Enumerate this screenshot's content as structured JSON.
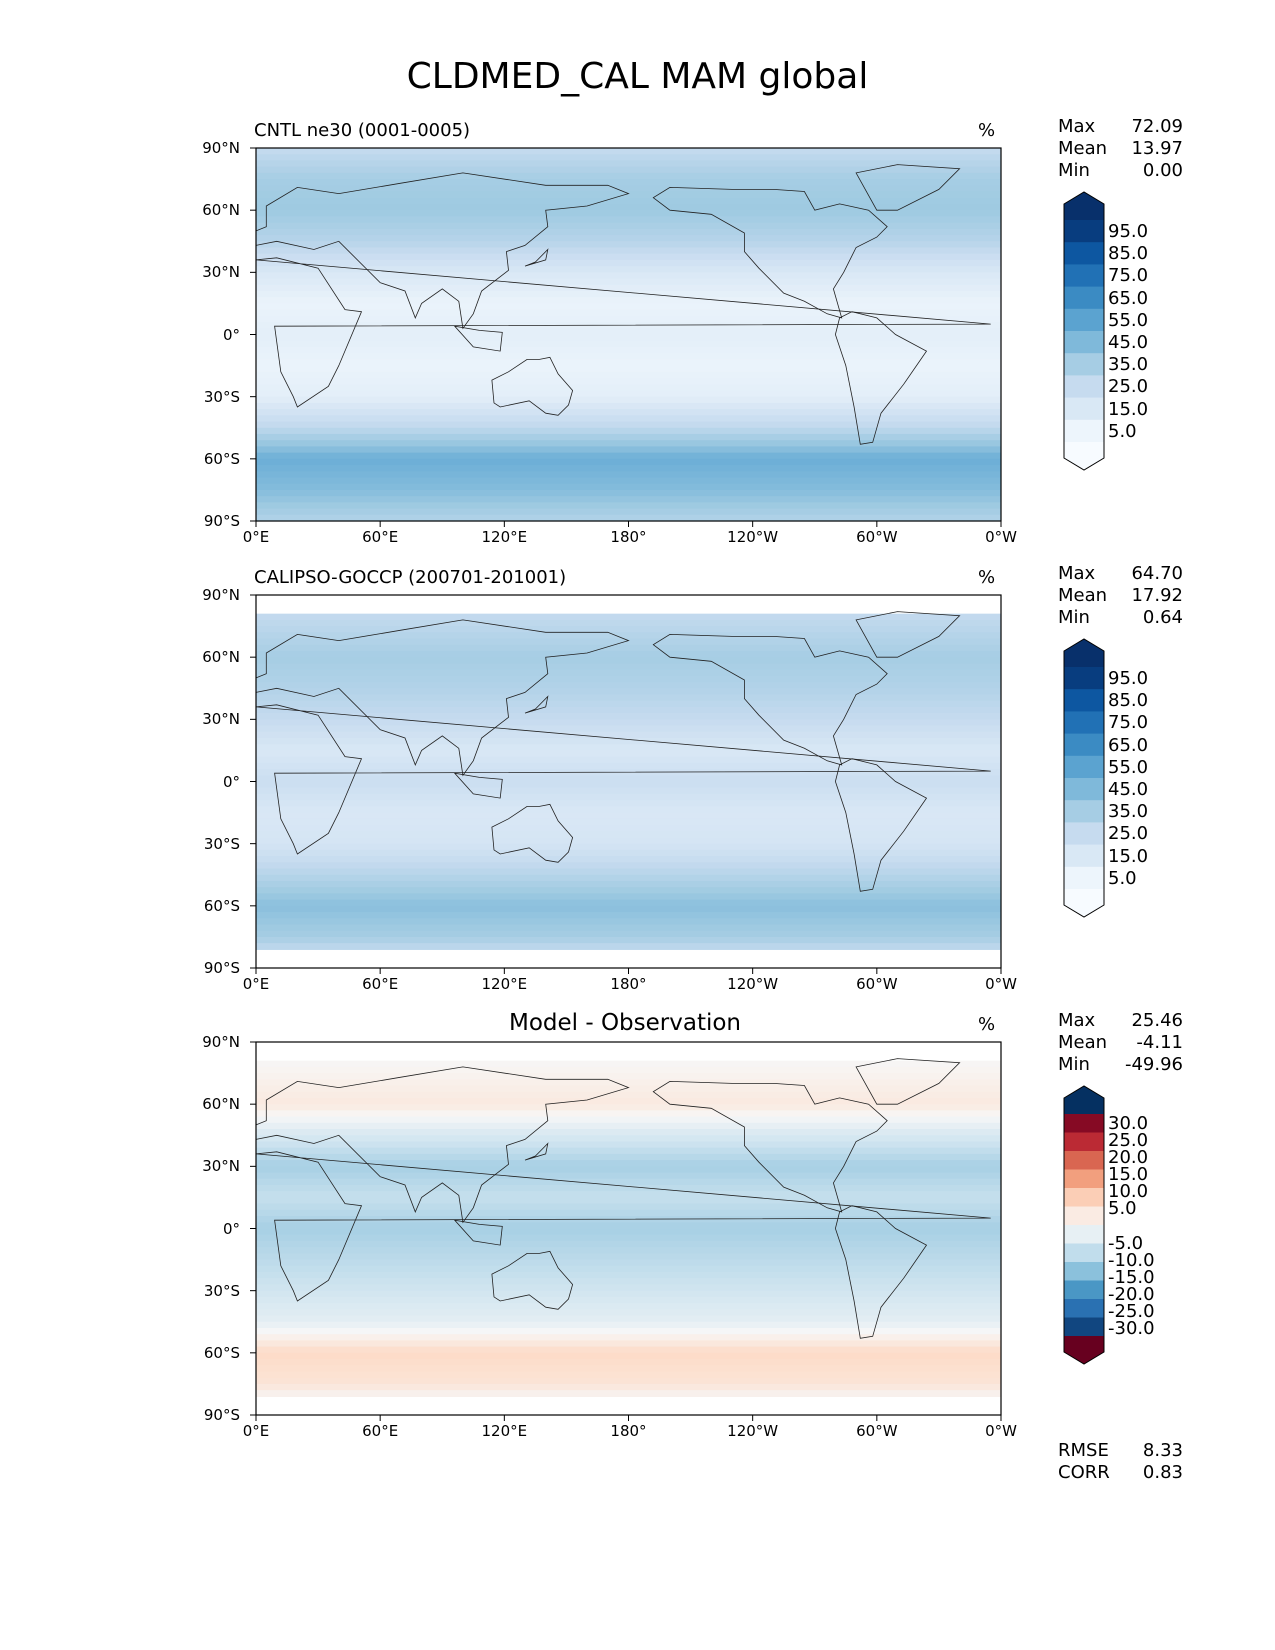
{
  "figure_title": "CLDMED_CAL MAM global",
  "chart_data": [
    {
      "type": "heatmap",
      "title": "CNTL ne30 (0001-0005)",
      "units": "%",
      "x_ticks": [
        "0°E",
        "60°E",
        "120°E",
        "180°",
        "120°W",
        "60°W",
        "0°W"
      ],
      "y_ticks": [
        "90°N",
        "60°N",
        "30°N",
        "0°",
        "30°S",
        "60°S",
        "90°S"
      ],
      "stats": [
        {
          "label": "Max",
          "value": "72.09"
        },
        {
          "label": "Mean",
          "value": "13.97"
        },
        {
          "label": "Min",
          "value": "0.00"
        }
      ],
      "colorbar_levels": [
        "95.0",
        "85.0",
        "75.0",
        "65.0",
        "55.0",
        "45.0",
        "35.0",
        "25.0",
        "15.0",
        "5.0"
      ],
      "colormap": "blues",
      "zonal_profile": [
        {
          "lat": 90,
          "value": 20
        },
        {
          "lat": 75,
          "value": 28
        },
        {
          "lat": 60,
          "value": 30
        },
        {
          "lat": 45,
          "value": 24
        },
        {
          "lat": 30,
          "value": 12
        },
        {
          "lat": 15,
          "value": 5
        },
        {
          "lat": 0,
          "value": 8
        },
        {
          "lat": -15,
          "value": 5
        },
        {
          "lat": -30,
          "value": 8
        },
        {
          "lat": -45,
          "value": 22
        },
        {
          "lat": -60,
          "value": 40
        },
        {
          "lat": -75,
          "value": 35
        },
        {
          "lat": -90,
          "value": 25
        }
      ]
    },
    {
      "type": "heatmap",
      "title": "CALIPSO-GOCCP (200701-201001)",
      "units": "%",
      "x_ticks": [
        "0°E",
        "60°E",
        "120°E",
        "180°",
        "120°W",
        "60°W",
        "0°W"
      ],
      "y_ticks": [
        "90°N",
        "60°N",
        "30°N",
        "0°",
        "30°S",
        "60°S",
        "90°S"
      ],
      "stats": [
        {
          "label": "Max",
          "value": "64.70"
        },
        {
          "label": "Mean",
          "value": "17.92"
        },
        {
          "label": "Min",
          "value": "0.64"
        }
      ],
      "colorbar_levels": [
        "95.0",
        "85.0",
        "75.0",
        "65.0",
        "55.0",
        "45.0",
        "35.0",
        "25.0",
        "15.0",
        "5.0"
      ],
      "colormap": "blues",
      "zonal_profile": [
        {
          "lat": 82,
          "value": 20
        },
        {
          "lat": 60,
          "value": 28
        },
        {
          "lat": 45,
          "value": 25
        },
        {
          "lat": 30,
          "value": 20
        },
        {
          "lat": 15,
          "value": 12
        },
        {
          "lat": 0,
          "value": 18
        },
        {
          "lat": -15,
          "value": 12
        },
        {
          "lat": -30,
          "value": 14
        },
        {
          "lat": -45,
          "value": 24
        },
        {
          "lat": -60,
          "value": 34
        },
        {
          "lat": -75,
          "value": 28
        },
        {
          "lat": -82,
          "value": 20
        }
      ]
    },
    {
      "type": "heatmap",
      "title": "Model - Observation",
      "units": "%",
      "x_ticks": [
        "0°E",
        "60°E",
        "120°E",
        "180°",
        "120°W",
        "60°W",
        "0°W"
      ],
      "y_ticks": [
        "90°N",
        "60°N",
        "30°N",
        "0°",
        "30°S",
        "60°S",
        "90°S"
      ],
      "stats": [
        {
          "label": "Max",
          "value": "25.46"
        },
        {
          "label": "Mean",
          "value": "-4.11"
        },
        {
          "label": "Min",
          "value": "-49.96"
        }
      ],
      "colorbar_levels": [
        "30.0",
        "25.0",
        "20.0",
        "15.0",
        "10.0",
        "5.0",
        "-5.0",
        "-10.0",
        "-15.0",
        "-20.0",
        "-25.0",
        "-30.0"
      ],
      "colormap": "rdbu",
      "zonal_profile": [
        {
          "lat": 82,
          "value": 0
        },
        {
          "lat": 60,
          "value": 3
        },
        {
          "lat": 45,
          "value": -5
        },
        {
          "lat": 30,
          "value": -10
        },
        {
          "lat": 15,
          "value": -7
        },
        {
          "lat": 0,
          "value": -10
        },
        {
          "lat": -15,
          "value": -8
        },
        {
          "lat": -30,
          "value": -6
        },
        {
          "lat": -45,
          "value": -3
        },
        {
          "lat": -60,
          "value": 6
        },
        {
          "lat": -75,
          "value": 4
        },
        {
          "lat": -82,
          "value": 0
        }
      ],
      "extra_stats": [
        {
          "label": "RMSE",
          "value": "8.33"
        },
        {
          "label": "CORR",
          "value": "0.83"
        }
      ]
    }
  ],
  "colors": {
    "blues": [
      "#f7fbff",
      "#deebf7",
      "#c6dbef",
      "#9ecae1",
      "#6baed6",
      "#4292c6",
      "#2171b5",
      "#08519c",
      "#08306b"
    ],
    "rdbu": [
      "#67001f",
      "#b2182b",
      "#d6604d",
      "#f4a582",
      "#fddbc7",
      "#f7f7f7",
      "#d1e5f0",
      "#92c5de",
      "#4393c3",
      "#2166ac",
      "#053061"
    ]
  }
}
